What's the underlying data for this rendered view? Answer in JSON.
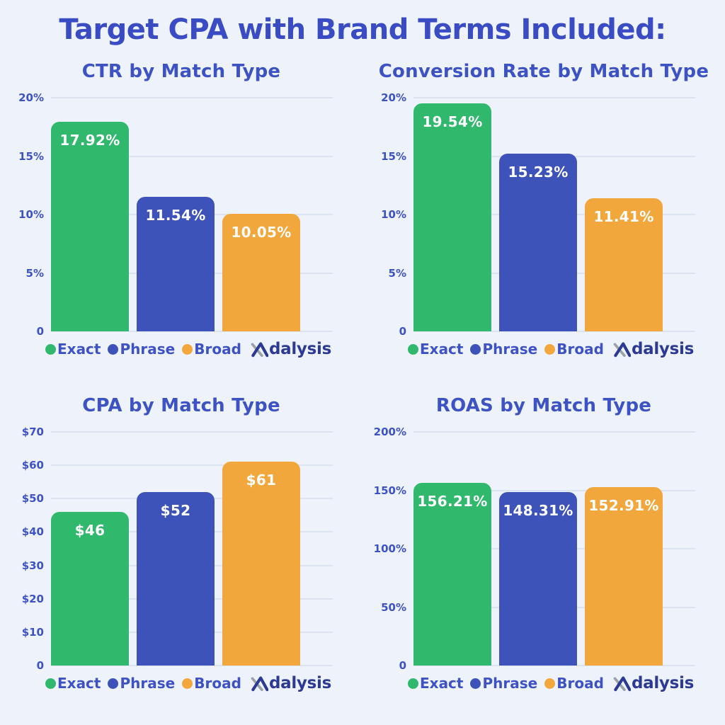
{
  "page": {
    "title": "Target CPA with Brand Terms Included:",
    "background": "#eef2fb"
  },
  "colors": {
    "accent_text": "#3d53c4",
    "main_title": "#3a4cc3",
    "gridline": "#dce3f2",
    "exact_green": "#30b86d",
    "phrase_blue": "#3e53b9",
    "broad_orange": "#f1a73c",
    "bar_value_text": "#ffffff",
    "logo_navy": "#2c3a96",
    "logo_gray": "#9aa3ad"
  },
  "series_colors": [
    "#30b86d",
    "#3e53b9",
    "#f1a73c"
  ],
  "legend": {
    "items": [
      {
        "label": "Exact",
        "color": "#30b86d"
      },
      {
        "label": "Phrase",
        "color": "#3e53b9"
      },
      {
        "label": "Broad",
        "color": "#f1a73c"
      }
    ]
  },
  "logo": {
    "brand": "Adalysis",
    "text_after_mark": "dalysis"
  },
  "chart_data": [
    {
      "type": "bar",
      "title": "CTR by Match Type",
      "categories": [
        "Exact",
        "Phrase",
        "Broad"
      ],
      "values": [
        17.92,
        11.54,
        10.05
      ],
      "value_labels": [
        "17.92%",
        "11.54%",
        "10.05%"
      ],
      "xlabel": "",
      "ylabel": "",
      "ylim": [
        0,
        20
      ],
      "yticks": [
        {
          "value": 20,
          "label": "20%"
        },
        {
          "value": 15,
          "label": "15%"
        },
        {
          "value": 10,
          "label": "10%"
        },
        {
          "value": 5,
          "label": "5%"
        },
        {
          "value": 0,
          "label": "0"
        }
      ],
      "grid": true,
      "legend_position": "bottom"
    },
    {
      "type": "bar",
      "title": "Conversion Rate by Match Type",
      "categories": [
        "Exact",
        "Phrase",
        "Broad"
      ],
      "values": [
        19.54,
        15.23,
        11.41
      ],
      "value_labels": [
        "19.54%",
        "15.23%",
        "11.41%"
      ],
      "xlabel": "",
      "ylabel": "",
      "ylim": [
        0,
        20
      ],
      "yticks": [
        {
          "value": 20,
          "label": "20%"
        },
        {
          "value": 15,
          "label": "15%"
        },
        {
          "value": 10,
          "label": "10%"
        },
        {
          "value": 5,
          "label": "5%"
        },
        {
          "value": 0,
          "label": "0"
        }
      ],
      "grid": true,
      "legend_position": "bottom"
    },
    {
      "type": "bar",
      "title": "CPA by Match Type",
      "categories": [
        "Exact",
        "Phrase",
        "Broad"
      ],
      "values": [
        46,
        52,
        61
      ],
      "value_labels": [
        "$46",
        "$52",
        "$61"
      ],
      "xlabel": "",
      "ylabel": "",
      "ylim": [
        0,
        70
      ],
      "yticks": [
        {
          "value": 70,
          "label": "$70"
        },
        {
          "value": 60,
          "label": "$60"
        },
        {
          "value": 50,
          "label": "$50"
        },
        {
          "value": 40,
          "label": "$40"
        },
        {
          "value": 30,
          "label": "$30"
        },
        {
          "value": 20,
          "label": "$20"
        },
        {
          "value": 10,
          "label": "$10"
        },
        {
          "value": 0,
          "label": "0"
        }
      ],
      "grid": true,
      "legend_position": "bottom"
    },
    {
      "type": "bar",
      "title": "ROAS by Match Type",
      "categories": [
        "Exact",
        "Phrase",
        "Broad"
      ],
      "values": [
        156.21,
        148.31,
        152.91
      ],
      "value_labels": [
        "156.21%",
        "148.31%",
        "152.91%"
      ],
      "xlabel": "",
      "ylabel": "",
      "ylim": [
        0,
        200
      ],
      "yticks": [
        {
          "value": 200,
          "label": "200%"
        },
        {
          "value": 150,
          "label": "150%"
        },
        {
          "value": 100,
          "label": "100%"
        },
        {
          "value": 50,
          "label": "50%"
        },
        {
          "value": 0,
          "label": "0"
        }
      ],
      "grid": true,
      "legend_position": "bottom"
    }
  ]
}
